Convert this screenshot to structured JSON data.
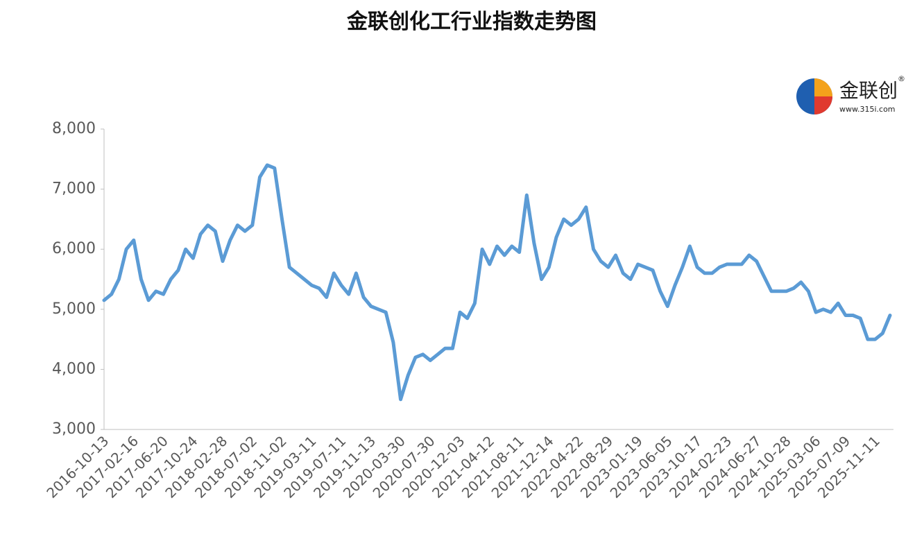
{
  "chart_data": {
    "type": "line",
    "title": "金联创化工行业指数走势图",
    "categories": [
      "2016-10-13",
      null,
      null,
      null,
      "2017-02-16",
      null,
      null,
      null,
      "2017-06-20",
      null,
      null,
      null,
      "2017-10-24",
      null,
      null,
      null,
      "2018-02-28",
      null,
      null,
      null,
      "2018-07-02",
      null,
      null,
      null,
      "2018-11-02",
      null,
      null,
      null,
      "2019-03-11",
      null,
      null,
      null,
      "2019-07-11",
      null,
      null,
      null,
      "2019-11-13",
      null,
      null,
      null,
      "2020-03-30",
      null,
      null,
      null,
      "2020-07-30",
      null,
      null,
      null,
      "2020-12-03",
      null,
      null,
      null,
      "2021-04-12",
      null,
      null,
      null,
      "2021-08-11",
      null,
      null,
      null,
      "2021-12-14",
      null,
      null,
      null,
      "2022-04-22",
      null,
      null,
      null,
      "2022-08-29",
      null,
      null,
      null,
      "2023-01-19",
      null,
      null,
      null,
      "2023-06-05",
      null,
      null,
      null,
      "2023-10-17",
      null,
      null,
      null,
      "2024-02-23",
      null,
      null,
      null,
      "2024-06-27",
      null,
      null,
      null,
      "2024-10-28",
      null,
      null,
      null,
      "2025-03-06",
      null,
      null,
      null,
      "2025-07-09",
      null,
      null,
      null,
      "2025-11-11",
      null,
      null
    ],
    "values": [
      5150,
      5250,
      5500,
      6000,
      6150,
      5500,
      5150,
      5300,
      5250,
      5500,
      5650,
      6000,
      5850,
      6250,
      6400,
      6300,
      5800,
      6150,
      6400,
      6300,
      6400,
      7200,
      7400,
      7350,
      6500,
      5700,
      5600,
      5500,
      5400,
      5350,
      5200,
      5600,
      5400,
      5250,
      5600,
      5200,
      5050,
      5000,
      4950,
      4450,
      3500,
      3900,
      4200,
      4250,
      4150,
      4250,
      4350,
      4350,
      4950,
      4850,
      5100,
      6000,
      5750,
      6050,
      5900,
      6050,
      5950,
      6900,
      6100,
      5500,
      5700,
      6200,
      6500,
      6400,
      6500,
      6700,
      6000,
      5800,
      5700,
      5900,
      5600,
      5500,
      5750,
      5700,
      5650,
      5300,
      5050,
      5400,
      5700,
      6050,
      5700,
      5600,
      5600,
      5700,
      5750,
      5750,
      5750,
      5900,
      5800,
      5550,
      5300,
      5300,
      5300,
      5350,
      5450,
      5300,
      4950,
      5000,
      4950,
      5100,
      4900,
      4900,
      4850,
      4500,
      4500,
      4600,
      4900
    ],
    "color": "#5b9bd5",
    "ylim": [
      3000,
      8000
    ],
    "yticks": [
      {
        "value": 3000,
        "label": "3,000"
      },
      {
        "value": 4000,
        "label": "4,000"
      },
      {
        "value": 5000,
        "label": "5,000"
      },
      {
        "value": 6000,
        "label": "6,000"
      },
      {
        "value": 7000,
        "label": "7,000"
      },
      {
        "value": 8000,
        "label": "8,000"
      }
    ],
    "grid": false
  },
  "logo": {
    "name": "金联创",
    "url": "www.315i.com",
    "mark": "®"
  }
}
